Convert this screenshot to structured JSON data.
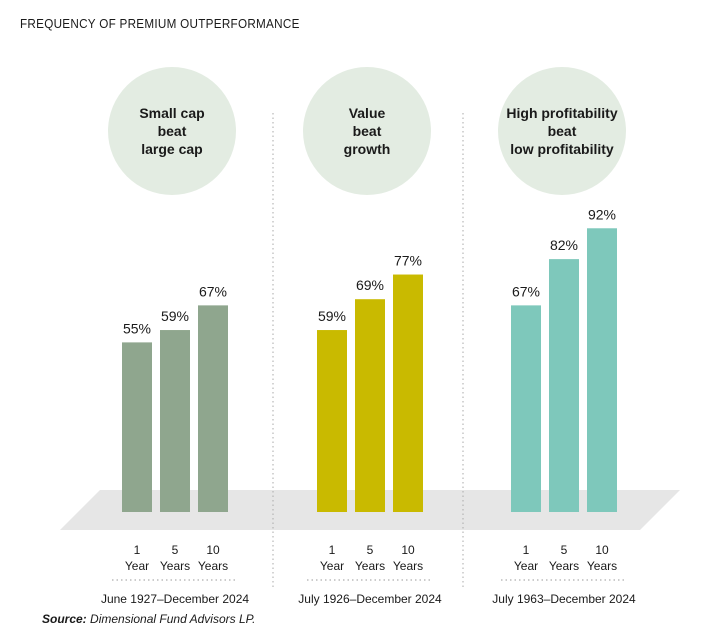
{
  "title": "FREQUENCY OF PREMIUM OUTPERFORMANCE",
  "source_label": "Source:",
  "source_text": " Dimensional Fund Advisors LP.",
  "chart_data": {
    "type": "bar",
    "title": "FREQUENCY OF PREMIUM OUTPERFORMANCE",
    "value_unit": "%",
    "categories": [
      "1 Year",
      "5 Years",
      "10 Years"
    ],
    "groups": [
      {
        "name": "Small cap beat large cap",
        "bubble_lines": [
          "Small cap",
          "beat",
          "large cap"
        ],
        "color": "#8fa68e",
        "period": "June 1927–December 2024",
        "values": [
          55,
          59,
          67
        ],
        "labels": [
          "55%",
          "59%",
          "67%"
        ]
      },
      {
        "name": "Value beat growth",
        "bubble_lines": [
          "Value",
          "beat",
          "growth"
        ],
        "color": "#c9ba00",
        "period": "July 1926–December 2024",
        "values": [
          59,
          69,
          77
        ],
        "labels": [
          "59%",
          "69%",
          "77%"
        ]
      },
      {
        "name": "High profitability beat low profitability",
        "bubble_lines": [
          "High profitability",
          "beat",
          "low profitability"
        ],
        "color": "#7ec8bb",
        "period": "July 1963–December 2024",
        "values": [
          67,
          82,
          92
        ],
        "labels": [
          "67%",
          "82%",
          "92%"
        ]
      }
    ],
    "x_tick_lines": [
      [
        "1",
        "Year"
      ],
      [
        "5",
        "Years"
      ],
      [
        "10",
        "Years"
      ]
    ],
    "bubble_color": "#e3ece2",
    "floor_color": "#e6e6e6"
  }
}
